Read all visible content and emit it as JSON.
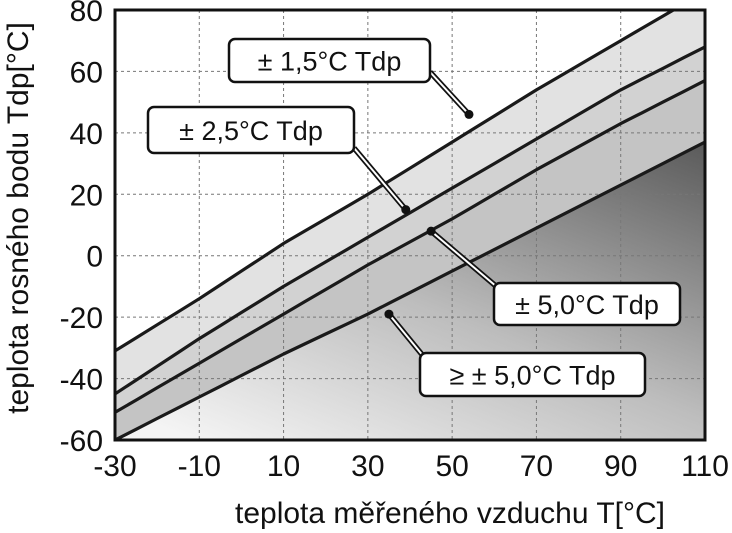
{
  "chart_data": {
    "type": "line",
    "xlabel": "teplota měřeného vzduchu T[°C]",
    "ylabel": "teplota rosného bodu  Tdp[°C]",
    "xlim": [
      -30,
      110
    ],
    "ylim": [
      -60,
      80
    ],
    "x_ticks": [
      -30,
      -10,
      10,
      30,
      50,
      70,
      90,
      110
    ],
    "y_ticks": [
      -60,
      -40,
      -20,
      0,
      20,
      40,
      60,
      80
    ],
    "grid": true,
    "x": [
      -30,
      -10,
      10,
      30,
      50,
      70,
      90,
      110
    ],
    "series": [
      {
        "values": [
          -31,
          -14,
          4,
          20,
          37,
          54,
          70,
          null
        ]
      },
      {
        "values": [
          -45,
          -27,
          -10,
          6,
          22,
          38,
          54,
          68
        ]
      },
      {
        "values": [
          -51,
          -35,
          -19,
          -3,
          12,
          28,
          43,
          57
        ]
      },
      {
        "values": [
          -60,
          -46,
          -32,
          -19,
          -5,
          9,
          23,
          37
        ]
      }
    ],
    "line_extension": {
      "x": [
        -30,
        -10,
        10,
        30,
        50,
        70,
        90,
        110
      ],
      "values": [
        null,
        null,
        null,
        null,
        null,
        null,
        null,
        null
      ]
    },
    "annotations": [
      {
        "text": "± 1,5°C Tdp",
        "point": [
          54,
          46
        ]
      },
      {
        "text": "± 2,5°C Tdp",
        "point": [
          39,
          15
        ]
      },
      {
        "text": "± 5,0°C Tdp",
        "point": [
          45,
          8
        ]
      },
      {
        "text": "≥ ± 5,0°C Tdp",
        "point": [
          35,
          -19
        ]
      }
    ],
    "band_colors": [
      "#ffffff",
      "#e2e2e2",
      "#d2d2d2",
      "#c4c4c4",
      "#8a8a8a"
    ]
  }
}
